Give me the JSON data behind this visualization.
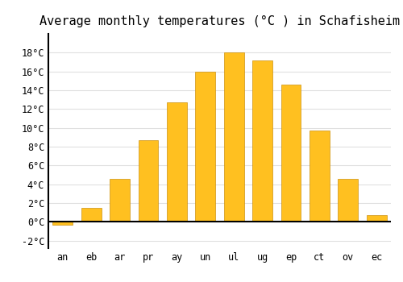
{
  "title": "Average monthly temperatures (°C ) in Schafisheim",
  "months": [
    "an",
    "eb",
    "ar",
    "pr",
    "ay",
    "un",
    "ul",
    "ug",
    "ep",
    "ct",
    "ov",
    "ec"
  ],
  "values": [
    -0.3,
    1.5,
    4.6,
    8.7,
    12.7,
    16.0,
    18.0,
    17.2,
    14.6,
    9.7,
    4.6,
    0.7
  ],
  "bar_color": "#FFC020",
  "bar_edge_color": "#CC9010",
  "ylim": [
    -2.8,
    20.0
  ],
  "yticks": [
    -2,
    0,
    2,
    4,
    6,
    8,
    10,
    12,
    14,
    16,
    18
  ],
  "background_color": "#FFFFFF",
  "plot_bg_color": "#FFFFFF",
  "grid_color": "#E0E0E0",
  "title_fontsize": 11,
  "tick_fontsize": 8.5,
  "font_family": "monospace"
}
